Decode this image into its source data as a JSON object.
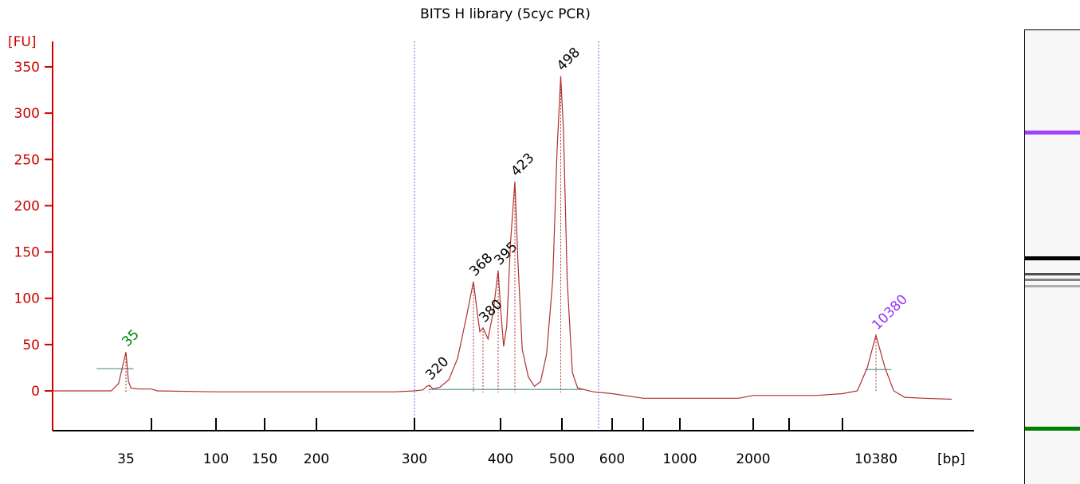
{
  "chart_data": {
    "type": "line",
    "title": "BITS H library (5cyc PCR)",
    "ylabel": "[FU]",
    "xlabel": "[bp]",
    "ylim": [
      -45,
      365
    ],
    "yticks": [
      0,
      50,
      100,
      150,
      200,
      250,
      300,
      350
    ],
    "ytick_labels": [
      "0",
      "50",
      "100",
      "150",
      "200",
      "250",
      "300",
      "350"
    ],
    "x_scale": "non-linear (electropherogram sizing)",
    "xticks": [
      35,
      100,
      150,
      200,
      300,
      400,
      500,
      600,
      1000,
      2000,
      10380
    ],
    "xtick_labels": [
      "35",
      "100",
      "150",
      "200",
      "300",
      "400",
      "500",
      "600",
      "1000",
      "2000",
      "10380"
    ],
    "region_markers_bp": [
      300,
      570
    ],
    "series": [
      {
        "points": [
          [
            25,
            0
          ],
          [
            33,
            0
          ],
          [
            34,
            8
          ],
          [
            35,
            42
          ],
          [
            36,
            10
          ],
          [
            37,
            3
          ],
          [
            40,
            2
          ],
          [
            45,
            2
          ],
          [
            50,
            0
          ],
          [
            100,
            -1
          ],
          [
            200,
            -1
          ],
          [
            280,
            -1
          ],
          [
            300,
            0
          ],
          [
            310,
            1
          ],
          [
            315,
            5
          ],
          [
            318,
            6
          ],
          [
            322,
            2
          ],
          [
            330,
            4
          ],
          [
            340,
            12
          ],
          [
            350,
            35
          ],
          [
            360,
            80
          ],
          [
            368,
            118
          ],
          [
            372,
            90
          ],
          [
            376,
            64
          ],
          [
            380,
            68
          ],
          [
            385,
            56
          ],
          [
            390,
            85
          ],
          [
            395,
            130
          ],
          [
            400,
            90
          ],
          [
            405,
            48
          ],
          [
            410,
            70
          ],
          [
            416,
            160
          ],
          [
            423,
            226
          ],
          [
            428,
            140
          ],
          [
            435,
            45
          ],
          [
            445,
            15
          ],
          [
            455,
            5
          ],
          [
            465,
            10
          ],
          [
            475,
            40
          ],
          [
            485,
            120
          ],
          [
            492,
            260
          ],
          [
            498,
            340
          ],
          [
            503,
            280
          ],
          [
            510,
            120
          ],
          [
            520,
            20
          ],
          [
            530,
            3
          ],
          [
            560,
            -1
          ],
          [
            600,
            -3
          ],
          [
            700,
            -8
          ],
          [
            1000,
            -8
          ],
          [
            1500,
            -8
          ],
          [
            1800,
            -8
          ],
          [
            2000,
            -5
          ],
          [
            3000,
            -5
          ],
          [
            5000,
            -5
          ],
          [
            7000,
            -3
          ],
          [
            8500,
            0
          ],
          [
            9500,
            25
          ],
          [
            10380,
            60
          ],
          [
            11200,
            25
          ],
          [
            12000,
            0
          ],
          [
            13000,
            -7
          ],
          [
            18000,
            -8
          ],
          [
            25000,
            -9
          ]
        ]
      }
    ],
    "peaks": [
      {
        "label": "35",
        "bp": 35,
        "fu": 42,
        "color": "#008000"
      },
      {
        "label": "320",
        "bp": 318,
        "fu": 6,
        "color": "#000000"
      },
      {
        "label": "368",
        "bp": 368,
        "fu": 118,
        "color": "#000000"
      },
      {
        "label": "380",
        "bp": 380,
        "fu": 68,
        "color": "#000000"
      },
      {
        "label": "395",
        "bp": 395,
        "fu": 130,
        "color": "#000000"
      },
      {
        "label": "423",
        "bp": 423,
        "fu": 226,
        "color": "#000000"
      },
      {
        "label": "498",
        "bp": 498,
        "fu": 340,
        "color": "#000000"
      },
      {
        "label": "10380",
        "bp": 10380,
        "fu": 60,
        "color": "#9933ff"
      }
    ],
    "colors": {
      "trace": "#b03030",
      "axis": "#cc0000",
      "region_marker": "#6a6adf",
      "baseline": "#5f9ea0",
      "lower_marker": "#008000",
      "upper_marker": "#9933ff"
    },
    "gel_lane": {
      "bands": [
        {
          "bp": 10380,
          "color": "#a040ff",
          "intensity": 1.0
        },
        {
          "bp": 498,
          "color": "#000000",
          "intensity": 1.0
        },
        {
          "bp": 423,
          "color": "#303030",
          "intensity": 0.85
        },
        {
          "bp": 395,
          "color": "#505050",
          "intensity": 0.7
        },
        {
          "bp": 368,
          "color": "#707070",
          "intensity": 0.55
        },
        {
          "bp": 35,
          "color": "#008000",
          "intensity": 1.0
        }
      ]
    }
  }
}
